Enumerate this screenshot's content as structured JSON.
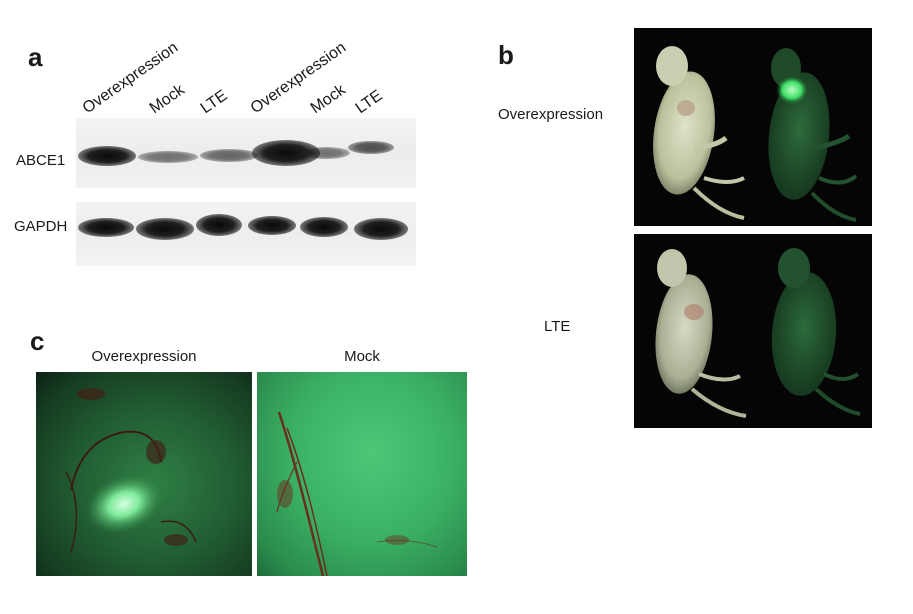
{
  "panels": {
    "a": {
      "letter": "a",
      "lanes": [
        "Overexpression",
        "Mock",
        "LTE",
        "Overexpression",
        "Mock",
        "LTE"
      ],
      "rows": [
        "ABCE1",
        "GAPDH"
      ]
    },
    "b": {
      "letter": "b",
      "rows": [
        "Overexpression",
        "LTE"
      ]
    },
    "c": {
      "letter": "c",
      "titles": [
        "Overexpression",
        "Mock"
      ]
    }
  },
  "colors": {
    "fluorescence_green": "#2f9a55",
    "mock_green": "#3cb866",
    "background_dark": "#0a0a0a"
  }
}
